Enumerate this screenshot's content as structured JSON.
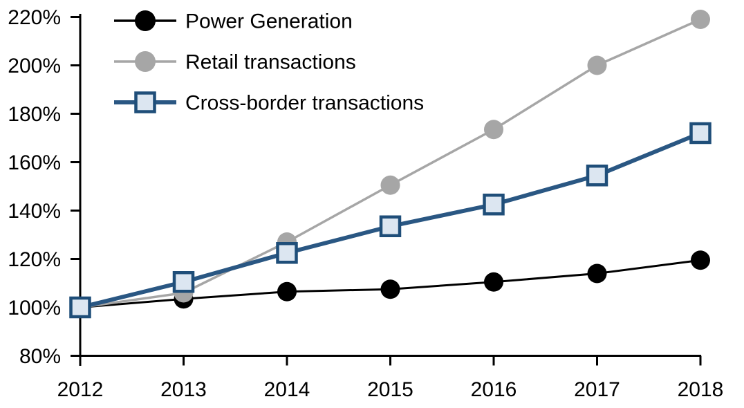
{
  "figure": {
    "background_color": "#FFFFFF",
    "axis_color": "#000000",
    "title": ""
  },
  "chart_data": {
    "type": "line",
    "title": "",
    "xlabel": "",
    "ylabel": "",
    "grid": false,
    "legend_position": "top-left",
    "x": [
      2012,
      2013,
      2014,
      2015,
      2016,
      2017,
      2018
    ],
    "x_tick_labels": [
      "2012",
      "2013",
      "2014",
      "2015",
      "2016",
      "2017",
      "2018"
    ],
    "ylim": [
      80,
      220
    ],
    "y_tick_values": [
      80,
      100,
      120,
      140,
      160,
      180,
      200,
      220
    ],
    "y_tick_labels": [
      "80%",
      "100%",
      "120%",
      "140%",
      "160%",
      "180%",
      "200%",
      "220%"
    ],
    "legend_entries": [
      "Power Generation",
      "Retail transactions",
      "Cross-border transactions"
    ],
    "series": [
      {
        "name": "Power Generation",
        "color": "#000000",
        "marker": "circle",
        "marker_fill": "#000000",
        "line_width": 3,
        "values": [
          100,
          103.5,
          106.5,
          107.5,
          110.5,
          114,
          119.5
        ]
      },
      {
        "name": "Retail transactions",
        "color": "#A6A6A6",
        "marker": "circle",
        "marker_fill": "#A6A6A6",
        "line_width": 3.5,
        "values": [
          100,
          106,
          127,
          150.5,
          173.5,
          200,
          219
        ]
      },
      {
        "name": "Cross-border transactions",
        "color": "#2A5783",
        "marker": "square",
        "marker_fill": "#DCE6F1",
        "marker_border": "#1F4E79",
        "line_width": 6,
        "values": [
          100,
          110.5,
          122.5,
          133.5,
          142.5,
          154.5,
          172
        ]
      }
    ]
  }
}
